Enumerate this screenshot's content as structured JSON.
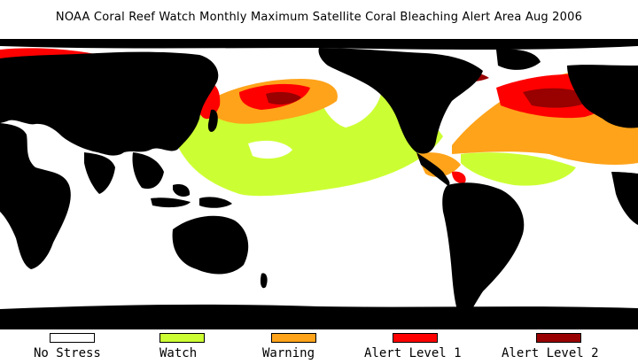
{
  "title": "NOAA Coral Reef Watch Monthly Maximum Satellite Coral Bleaching Alert Area    Aug 2006",
  "colors": {
    "land": "#000000",
    "no_stress": "#ffffff",
    "watch": "#ccff33",
    "warning": "#ffa31a",
    "alert1": "#ff0000",
    "alert2": "#990000"
  },
  "legend": [
    {
      "label": "No Stress",
      "color": "#ffffff"
    },
    {
      "label": "Watch",
      "color": "#ccff33"
    },
    {
      "label": "Warning",
      "color": "#ffa31a"
    },
    {
      "label": "Alert Level 1",
      "color": "#ff0000"
    },
    {
      "label": "Alert Level 2",
      "color": "#990000"
    }
  ]
}
